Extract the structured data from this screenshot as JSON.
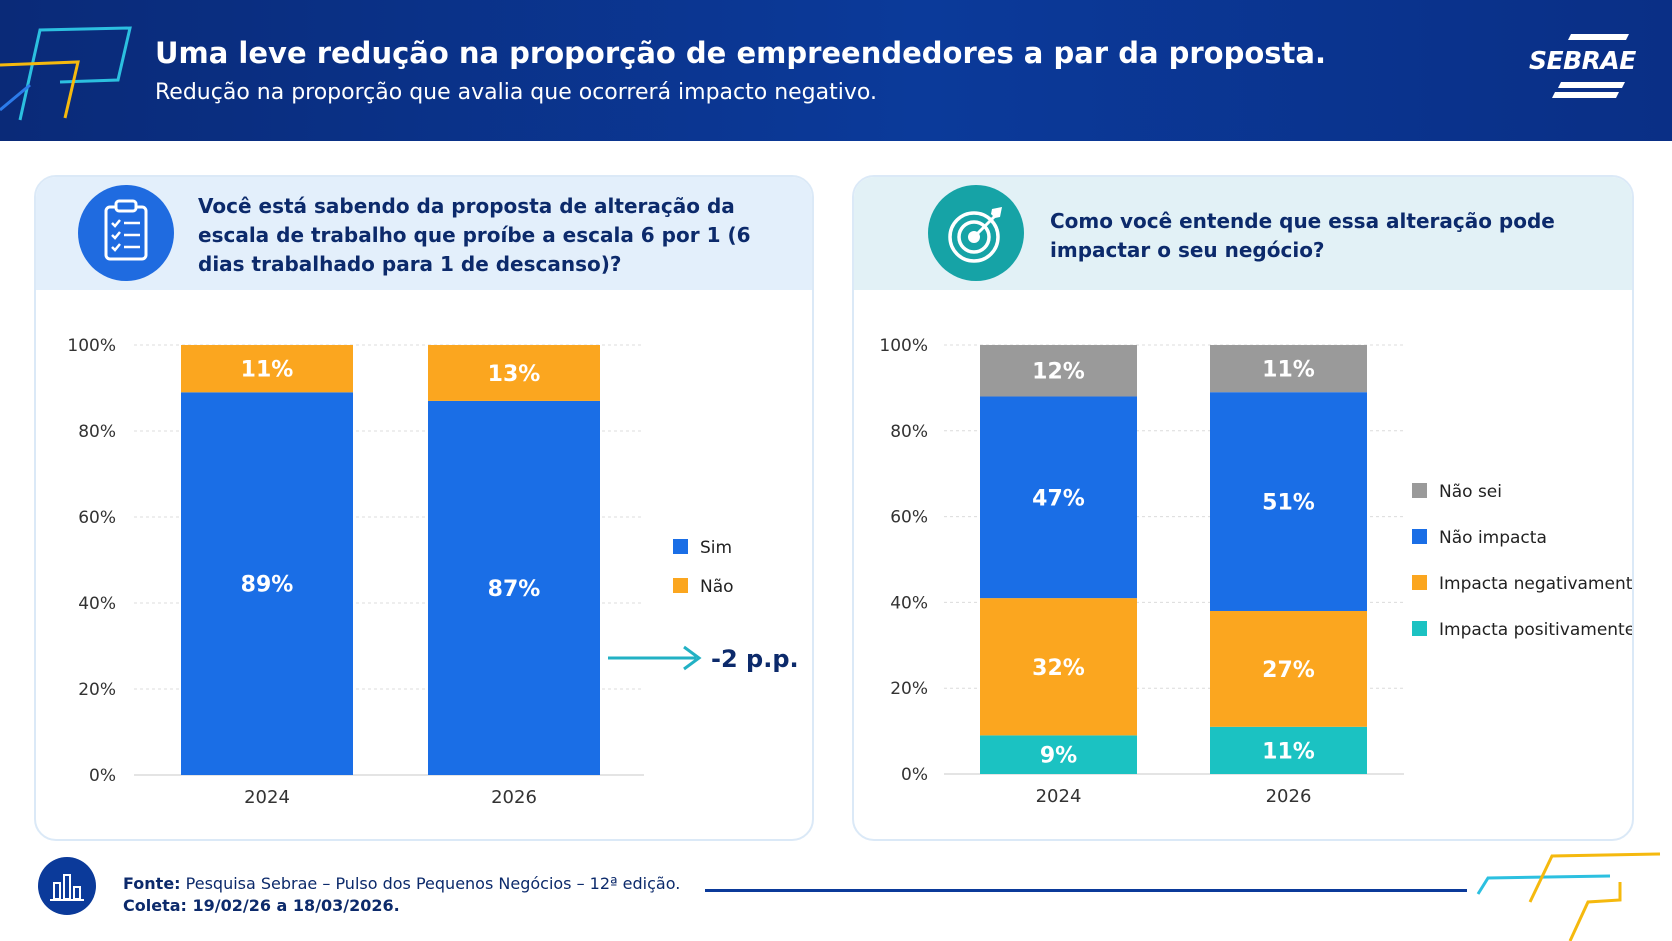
{
  "header": {
    "title": "Uma leve redução na proporção de empreendedores a par da proposta.",
    "subtitle": "Redução na proporção que avalia que ocorrerá impacto negativo.",
    "logo": "SEBRAE"
  },
  "colors": {
    "header_bg": "#0b3a9a",
    "blue": "#1a6ee6",
    "orange": "#fba61f",
    "gray": "#9a9a9a",
    "teal": "#1bc2c2",
    "dark_text": "#0c2a6b",
    "arrow": "#22b1c4"
  },
  "left_panel": {
    "icon": "clipboard-checklist-icon",
    "question": "Você está sabendo da proposta de alteração da escala de trabalho que proíbe a escala 6 por 1 (6 dias trabalhado para 1 de descanso)?",
    "annotation": "-2 p.p."
  },
  "right_panel": {
    "icon": "target-icon",
    "question": "Como você entende que essa alteração pode impactar o seu negócio?"
  },
  "chart_data": [
    {
      "type": "bar",
      "stacked": true,
      "categories": [
        "2024",
        "2026"
      ],
      "ylim": [
        0,
        100
      ],
      "yticks": [
        "0%",
        "20%",
        "40%",
        "60%",
        "80%",
        "100%"
      ],
      "series": [
        {
          "name": "Sim",
          "values": [
            89,
            87
          ],
          "labels": [
            "89%",
            "87%"
          ],
          "color": "#1a6ee6"
        },
        {
          "name": "Não",
          "values": [
            11,
            13
          ],
          "labels": [
            "11%",
            "13%"
          ],
          "color": "#fba61f"
        }
      ],
      "legend": "right",
      "grid": true
    },
    {
      "type": "bar",
      "stacked": true,
      "categories": [
        "2024",
        "2026"
      ],
      "ylim": [
        0,
        100
      ],
      "yticks": [
        "0%",
        "20%",
        "40%",
        "60%",
        "80%",
        "100%"
      ],
      "series": [
        {
          "name": "Impacta positivamente",
          "values": [
            9,
            11
          ],
          "labels": [
            "9%",
            "11%"
          ],
          "color": "#1bc2c2"
        },
        {
          "name": "Impacta negativamente",
          "values": [
            32,
            27
          ],
          "labels": [
            "32%",
            "27%"
          ],
          "color": "#fba61f"
        },
        {
          "name": "Não impacta",
          "values": [
            47,
            51
          ],
          "labels": [
            "47%",
            "51%"
          ],
          "color": "#1a6ee6"
        },
        {
          "name": "Não sei",
          "values": [
            12,
            11
          ],
          "labels": [
            "12%",
            "11%"
          ],
          "color": "#9a9a9a"
        }
      ],
      "legend_order": [
        "Não sei",
        "Não impacta",
        "Impacta negativamente",
        "Impacta positivamente"
      ],
      "legend": "right",
      "grid": true
    }
  ],
  "footer": {
    "source_label": "Fonte:",
    "source_text": "Pesquisa Sebrae – Pulso dos Pequenos Negócios – 12ª edição.",
    "collection_label": "Coleta:",
    "collection_text": "19/02/26 a 18/03/2026.",
    "icon": "bar-chart-icon"
  }
}
